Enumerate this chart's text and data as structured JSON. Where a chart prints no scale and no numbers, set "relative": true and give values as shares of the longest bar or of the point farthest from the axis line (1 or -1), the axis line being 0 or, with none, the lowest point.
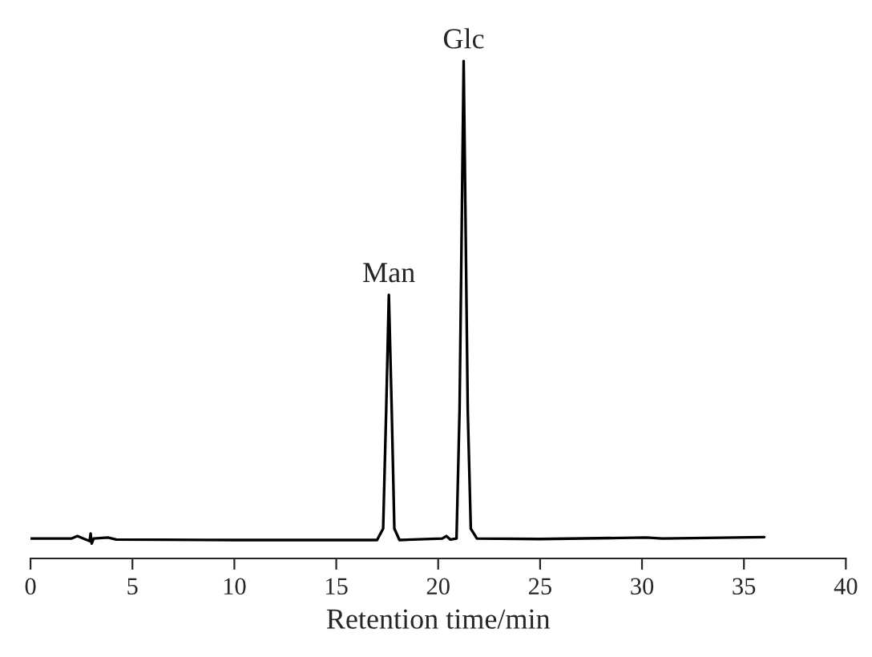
{
  "chart_data": {
    "type": "line",
    "relative": true,
    "xlabel": "Retention time/min",
    "xlim": [
      0,
      40
    ],
    "xticks": [
      0,
      5,
      10,
      15,
      20,
      25,
      30,
      35,
      40
    ],
    "x": [
      0.0,
      2.0,
      2.3,
      2.6,
      2.9,
      2.95,
      3.0,
      3.1,
      3.8,
      4.2,
      10,
      17.0,
      17.3,
      17.45,
      17.58,
      17.72,
      17.85,
      18.1,
      20.2,
      20.4,
      20.6,
      20.9,
      21.05,
      21.25,
      21.45,
      21.6,
      21.9,
      25,
      30.2,
      31,
      36
    ],
    "series": [
      {
        "color": "#000000",
        "values": [
          0.04,
          0.04,
          0.045,
          0.04,
          0.035,
          0.05,
          0.03,
          0.04,
          0.042,
          0.038,
          0.037,
          0.037,
          0.06,
          0.3,
          0.53,
          0.3,
          0.06,
          0.037,
          0.04,
          0.045,
          0.038,
          0.04,
          0.3,
          1.0,
          0.3,
          0.06,
          0.04,
          0.039,
          0.042,
          0.04,
          0.043
        ]
      }
    ],
    "annotations": [
      {
        "text": "Man",
        "x": 17.58,
        "y": 0.53
      },
      {
        "text": "Glc",
        "x": 21.25,
        "y": 1.0
      }
    ]
  }
}
